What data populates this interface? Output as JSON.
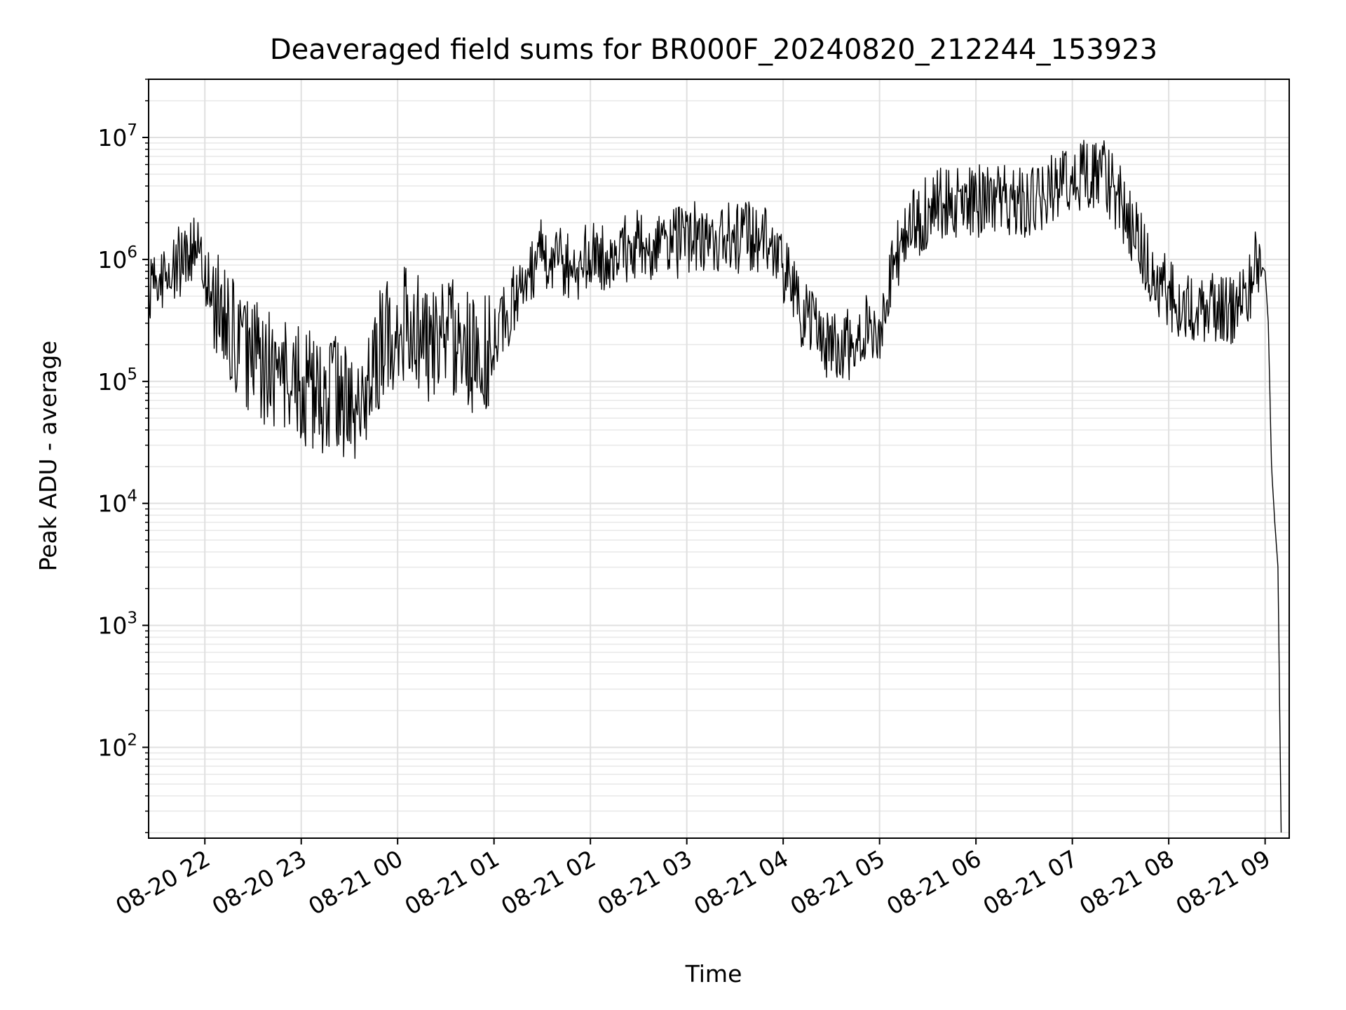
{
  "chart_data": {
    "type": "line",
    "title": "Deaveraged field sums for BR000F_20240820_212244_153923",
    "xlabel": "Time",
    "ylabel": "Peak ADU - average",
    "yscale": "log",
    "ylim": [
      18,
      30000000
    ],
    "xlim": [
      "2024-08-20 21:25",
      "2024-08-21 09:15"
    ],
    "grid": true,
    "x_ticks": [
      "08-20 22",
      "08-20 23",
      "08-21 00",
      "08-21 01",
      "08-21 02",
      "08-21 03",
      "08-21 04",
      "08-21 05",
      "08-21 06",
      "08-21 07",
      "08-21 08",
      "08-21 09"
    ],
    "y_ticks": [
      {
        "value": 100,
        "base": "10",
        "exp": "2"
      },
      {
        "value": 1000,
        "base": "10",
        "exp": "3"
      },
      {
        "value": 10000,
        "base": "10",
        "exp": "4"
      },
      {
        "value": 100000,
        "base": "10",
        "exp": "5"
      },
      {
        "value": 1000000,
        "base": "10",
        "exp": "6"
      },
      {
        "value": 10000000,
        "base": "10",
        "exp": "7"
      }
    ],
    "series": [
      {
        "color": "#000000",
        "x": [
          "2024-08-20 21:25",
          "2024-08-20 21:30",
          "2024-08-20 21:35",
          "2024-08-20 21:40",
          "2024-08-20 21:45",
          "2024-08-20 21:50",
          "2024-08-20 21:55",
          "2024-08-20 22:00",
          "2024-08-20 22:10",
          "2024-08-20 22:20",
          "2024-08-20 22:30",
          "2024-08-20 22:40",
          "2024-08-20 22:50",
          "2024-08-20 23:00",
          "2024-08-20 23:10",
          "2024-08-20 23:20",
          "2024-08-20 23:30",
          "2024-08-20 23:40",
          "2024-08-20 23:50",
          "2024-08-21 00:00",
          "2024-08-21 00:10",
          "2024-08-21 00:20",
          "2024-08-21 00:30",
          "2024-08-21 00:40",
          "2024-08-21 00:50",
          "2024-08-21 01:00",
          "2024-08-21 01:10",
          "2024-08-21 01:20",
          "2024-08-21 01:30",
          "2024-08-21 01:40",
          "2024-08-21 01:50",
          "2024-08-21 02:00",
          "2024-08-21 02:10",
          "2024-08-21 02:20",
          "2024-08-21 02:30",
          "2024-08-21 02:40",
          "2024-08-21 02:50",
          "2024-08-21 03:00",
          "2024-08-21 03:10",
          "2024-08-21 03:20",
          "2024-08-21 03:30",
          "2024-08-21 03:40",
          "2024-08-21 03:50",
          "2024-08-21 04:00",
          "2024-08-21 04:10",
          "2024-08-21 04:20",
          "2024-08-21 04:30",
          "2024-08-21 04:40",
          "2024-08-21 04:50",
          "2024-08-21 05:00",
          "2024-08-21 05:10",
          "2024-08-21 05:20",
          "2024-08-21 05:30",
          "2024-08-21 05:40",
          "2024-08-21 05:50",
          "2024-08-21 06:00",
          "2024-08-21 06:10",
          "2024-08-21 06:20",
          "2024-08-21 06:30",
          "2024-08-21 06:40",
          "2024-08-21 06:50",
          "2024-08-21 07:00",
          "2024-08-21 07:10",
          "2024-08-21 07:20",
          "2024-08-21 07:30",
          "2024-08-21 07:40",
          "2024-08-21 07:50",
          "2024-08-21 08:00",
          "2024-08-21 08:10",
          "2024-08-21 08:20",
          "2024-08-21 08:30",
          "2024-08-21 08:40",
          "2024-08-21 08:50",
          "2024-08-21 08:55",
          "2024-08-21 09:00",
          "2024-08-21 09:02",
          "2024-08-21 09:04",
          "2024-08-21 09:06",
          "2024-08-21 09:08",
          "2024-08-21 09:10"
        ],
        "y": [
          600000,
          650000,
          700000,
          800000,
          1000000,
          1300000,
          1200000,
          700000,
          350000,
          200000,
          150000,
          120000,
          100000,
          90000,
          80000,
          75000,
          70000,
          65000,
          200000,
          300000,
          250000,
          200000,
          250000,
          200000,
          150000,
          200000,
          400000,
          700000,
          1200000,
          1000000,
          900000,
          1000000,
          1100000,
          1200000,
          1300000,
          1300000,
          1300000,
          1400000,
          1600000,
          1500000,
          1500000,
          1600000,
          1500000,
          800000,
          400000,
          250000,
          180000,
          200000,
          250000,
          300000,
          1000000,
          1800000,
          2500000,
          3000000,
          3000000,
          3000000,
          3000000,
          3000000,
          3000000,
          3200000,
          4000000,
          5000000,
          5000000,
          5000000,
          3000000,
          1500000,
          800000,
          500000,
          400000,
          350000,
          400000,
          400000,
          600000,
          1000000,
          800000,
          300000,
          20000,
          7000,
          3000,
          20
        ]
      }
    ]
  }
}
